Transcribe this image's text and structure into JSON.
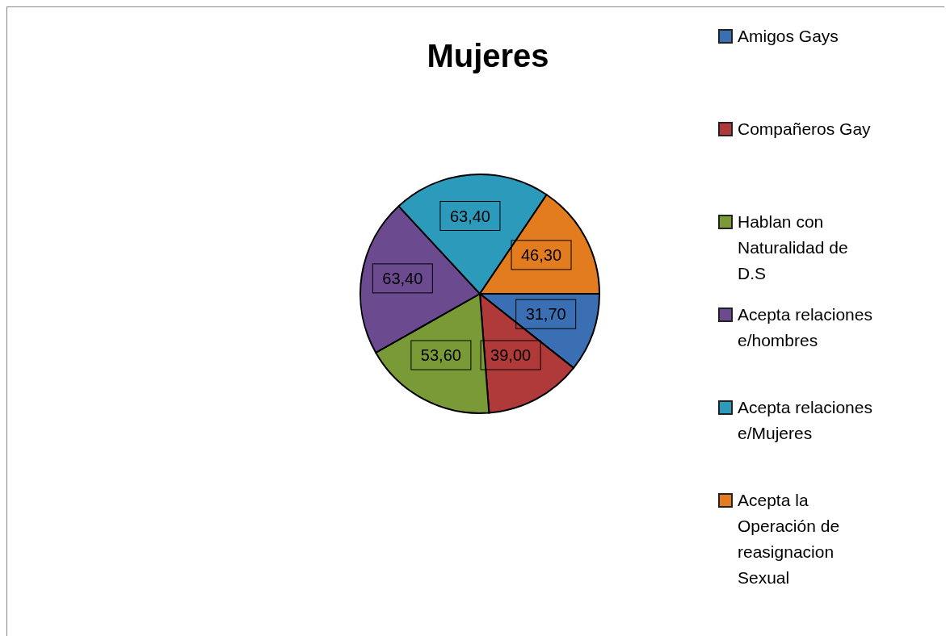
{
  "chart_data": {
    "type": "pie",
    "title": "Mujeres",
    "categories": [
      "Amigos Gays",
      "Compañeros Gay",
      "Hablan con Naturalidad de D.S",
      "Acepta relaciones e/hombres",
      "Acepta relaciones e/Mujeres",
      "Acepta la Operación de reasignacion Sexual"
    ],
    "values": [
      31.7,
      39.0,
      53.6,
      63.4,
      63.4,
      46.3
    ],
    "value_labels": [
      "31,70",
      "39,00",
      "53,60",
      "63,40",
      "63,40",
      "46,30"
    ],
    "colors": [
      "#3b6fb3",
      "#b03a3a",
      "#7a9a38",
      "#6b4a90",
      "#2c9bbb",
      "#e37b1f"
    ],
    "legend": "right"
  }
}
